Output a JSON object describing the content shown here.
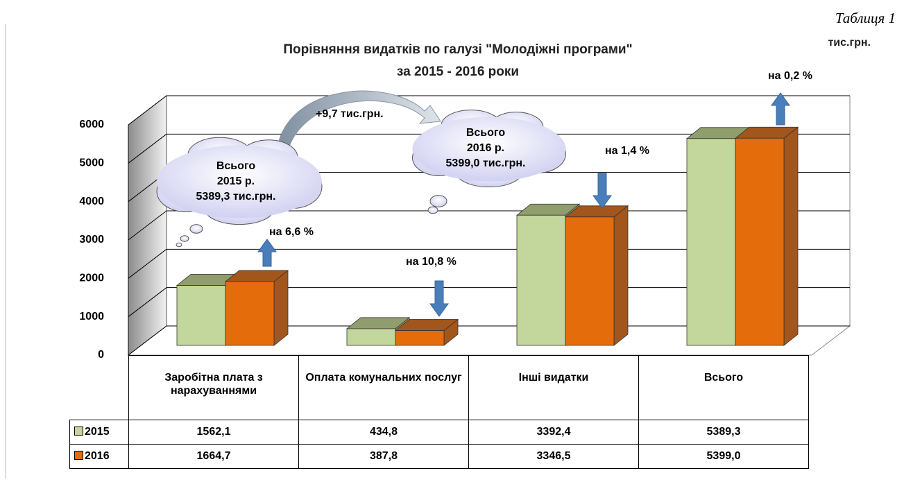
{
  "chart_data": {
    "type": "bar",
    "title": "Порівняння видатків по галузі \"Молодіжні програми\"",
    "subtitle": "за   2015 - 2016 роки",
    "unit": "тис.грн.",
    "caption": "Таблиця 1",
    "categories": [
      "Заробітна плата з нарахуваннями",
      "Оплата комунальних послуг",
      "Інші видатки",
      "Всього"
    ],
    "series": [
      {
        "name": "2015",
        "color": "#c3d69b",
        "top_color": "#8f9e6c",
        "values": [
          1562.1,
          434.8,
          3392.4,
          5389.3
        ],
        "value_labels": [
          "1562,1",
          "434,8",
          "3392,4",
          "5389,3"
        ]
      },
      {
        "name": "2016",
        "color": "#e46c0a",
        "top_color": "#a3561b",
        "values": [
          1664.7,
          387.8,
          3346.5,
          5399.0
        ],
        "value_labels": [
          "1664,7",
          "387,8",
          "3346,5",
          "5399,0"
        ]
      }
    ],
    "ylim": [
      0,
      6000
    ],
    "yticks": [
      0,
      1000,
      2000,
      3000,
      4000,
      5000,
      6000
    ],
    "grid": true,
    "annotations": [
      "+9,7 тис.грн.",
      "на 6,6 %",
      "на 10,8 %",
      "на 1,4 %",
      "на 0,2 %"
    ],
    "callouts": [
      {
        "lines": [
          "Всього",
          "2015 р.",
          "5389,3 тис.грн."
        ]
      },
      {
        "lines": [
          "Всього",
          "2016 р.",
          "5399,0 тис.грн."
        ]
      }
    ]
  }
}
